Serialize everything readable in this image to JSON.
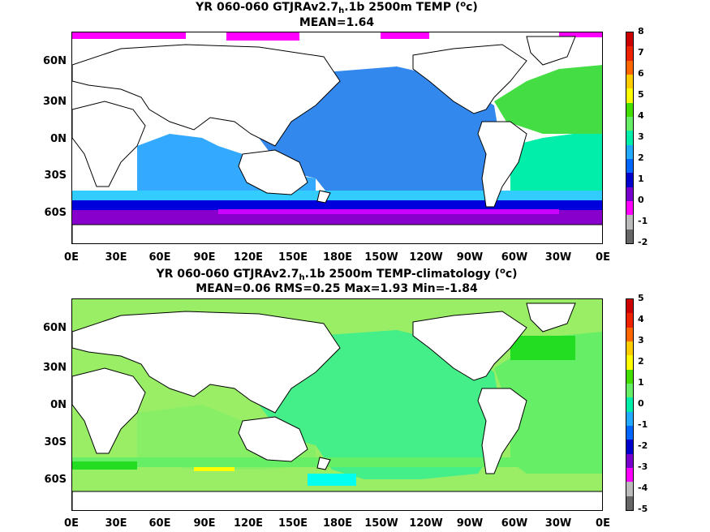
{
  "panels": [
    {
      "title_prefix": "YR 060-060 GTJRAv2.7",
      "title_sub": "h",
      "title_suffix": ".1b 2500m TEMP (",
      "title_sup": "o",
      "title_end": "c)",
      "subtitle": "MEAN=1.64",
      "colorbar_ticks": [
        "8",
        "7",
        "6",
        "5",
        "4",
        "3",
        "2",
        "1",
        "0",
        "-1",
        "-2"
      ],
      "colorbar_colors": [
        "#cc0000",
        "#ee2200",
        "#ff6600",
        "#ffcc00",
        "#ffff00",
        "#44dd00",
        "#66ee66",
        "#00eeaa",
        "#22aaff",
        "#0066ff",
        "#0000cc",
        "#7700cc",
        "#ff00ff",
        "#bbbbbb",
        "#666666"
      ]
    },
    {
      "title_prefix": "YR 060-060 GTJRAv2.7",
      "title_sub": "h",
      "title_suffix": ".1b 2500m TEMP-climatology (",
      "title_sup": "o",
      "title_end": "c)",
      "subtitle": "MEAN=0.06   RMS=0.25   Max=1.93   Min=-1.84",
      "colorbar_ticks": [
        "5",
        "4",
        "3",
        "2",
        "1",
        "0",
        "-1",
        "-2",
        "-3",
        "-4",
        "-5"
      ],
      "colorbar_colors": [
        "#cc0000",
        "#ee2200",
        "#ff6600",
        "#ffcc00",
        "#ffff00",
        "#44dd00",
        "#66ee66",
        "#00eeaa",
        "#22aaff",
        "#0066ff",
        "#0000cc",
        "#7700cc",
        "#ff00ff",
        "#bbbbbb",
        "#666666"
      ]
    }
  ],
  "lat_labels": [
    "60N",
    "30N",
    "0N",
    "30S",
    "60S"
  ],
  "lon_labels": [
    "0E",
    "30E",
    "60E",
    "90E",
    "120E",
    "150E",
    "180E",
    "150W",
    "120W",
    "90W",
    "60W",
    "30W",
    "0E"
  ],
  "colors": {
    "land": "#ffffff",
    "coast": "#000000",
    "top_pacific": "#3388ee",
    "top_indian": "#33aaff",
    "top_atlantic_n": "#44dd44",
    "top_atlantic_s": "#00eeaa",
    "top_south_blue": "#0000dd",
    "top_south_purple": "#8800cc",
    "top_arctic": "#ff00ff",
    "anom_main": "#44ee88",
    "anom_light": "#99ee66",
    "anom_cyan": "#00ffee",
    "anom_bright": "#22dd22",
    "anom_yellow": "#ffff00"
  }
}
